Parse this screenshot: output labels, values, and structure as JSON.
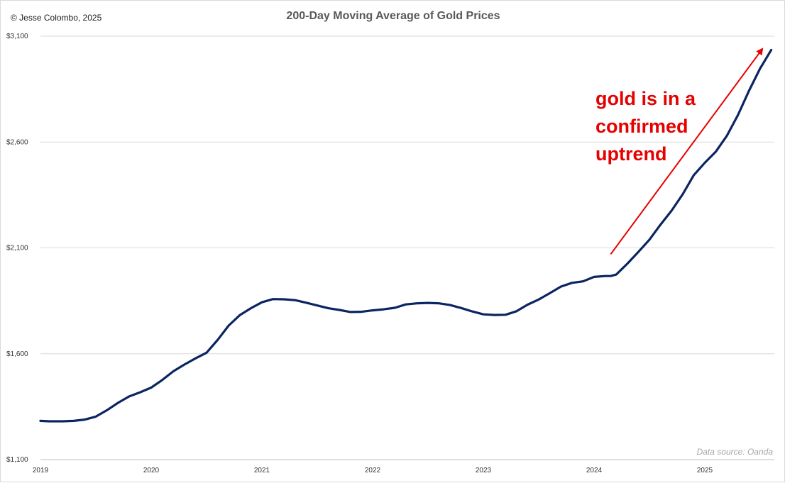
{
  "copyright": "© Jesse Colombo, 2025",
  "source": "Data source: Oanda",
  "colors": {
    "line": "#0b2561",
    "annotation": "#e60000",
    "grid": "#d9d9d9"
  },
  "chart_data": {
    "type": "line",
    "title": "200-Day Moving Average of Gold Prices",
    "xlabel": "",
    "ylabel": "",
    "xlim": [
      2019.0,
      2025.62
    ],
    "ylim": [
      1100,
      3100
    ],
    "yticks": [
      1100,
      1600,
      2100,
      2600,
      3100
    ],
    "ytick_labels": [
      "$1,100",
      "$1,600",
      "$2,100",
      "$2,600",
      "$3,100"
    ],
    "xticks": [
      2019,
      2020,
      2021,
      2022,
      2023,
      2024,
      2025
    ],
    "xtick_labels": [
      "2019",
      "2020",
      "2021",
      "2022",
      "2023",
      "2024",
      "2025"
    ],
    "grid": true,
    "series": [
      {
        "color": "#0b2561",
        "x": [
          2019.0,
          2019.08,
          2019.2,
          2019.3,
          2019.4,
          2019.5,
          2019.6,
          2019.7,
          2019.8,
          2019.9,
          2020.0,
          2020.1,
          2020.2,
          2020.3,
          2020.4,
          2020.5,
          2020.6,
          2020.7,
          2020.8,
          2020.9,
          2021.0,
          2021.1,
          2021.2,
          2021.3,
          2021.4,
          2021.5,
          2021.6,
          2021.7,
          2021.8,
          2021.9,
          2022.0,
          2022.1,
          2022.2,
          2022.3,
          2022.4,
          2022.5,
          2022.6,
          2022.7,
          2022.8,
          2022.9,
          2023.0,
          2023.1,
          2023.2,
          2023.3,
          2023.4,
          2023.5,
          2023.6,
          2023.7,
          2023.8,
          2023.9,
          2024.0,
          2024.1,
          2024.15,
          2024.2,
          2024.3,
          2024.4,
          2024.5,
          2024.6,
          2024.7,
          2024.8,
          2024.9,
          2025.0,
          2025.1,
          2025.2,
          2025.3,
          2025.4,
          2025.5,
          2025.6
        ],
        "values": [
          1283,
          1281,
          1281,
          1283,
          1289,
          1303,
          1333,
          1368,
          1398,
          1418,
          1440,
          1476,
          1517,
          1549,
          1578,
          1605,
          1665,
          1733,
          1782,
          1815,
          1843,
          1858,
          1857,
          1853,
          1841,
          1828,
          1815,
          1807,
          1797,
          1798,
          1805,
          1810,
          1817,
          1833,
          1838,
          1840,
          1838,
          1830,
          1816,
          1800,
          1786,
          1783,
          1784,
          1801,
          1832,
          1856,
          1886,
          1917,
          1935,
          1942,
          1963,
          1967,
          1967,
          1974,
          2025,
          2081,
          2139,
          2210,
          2276,
          2353,
          2443,
          2502,
          2555,
          2630,
          2728,
          2843,
          2948,
          3035
        ]
      }
    ],
    "annotation": {
      "text": [
        "gold is in a",
        "confirmed",
        "uptrend"
      ],
      "arrow_from": [
        2024.15,
        2070
      ],
      "arrow_to": [
        2025.52,
        3040
      ]
    }
  }
}
